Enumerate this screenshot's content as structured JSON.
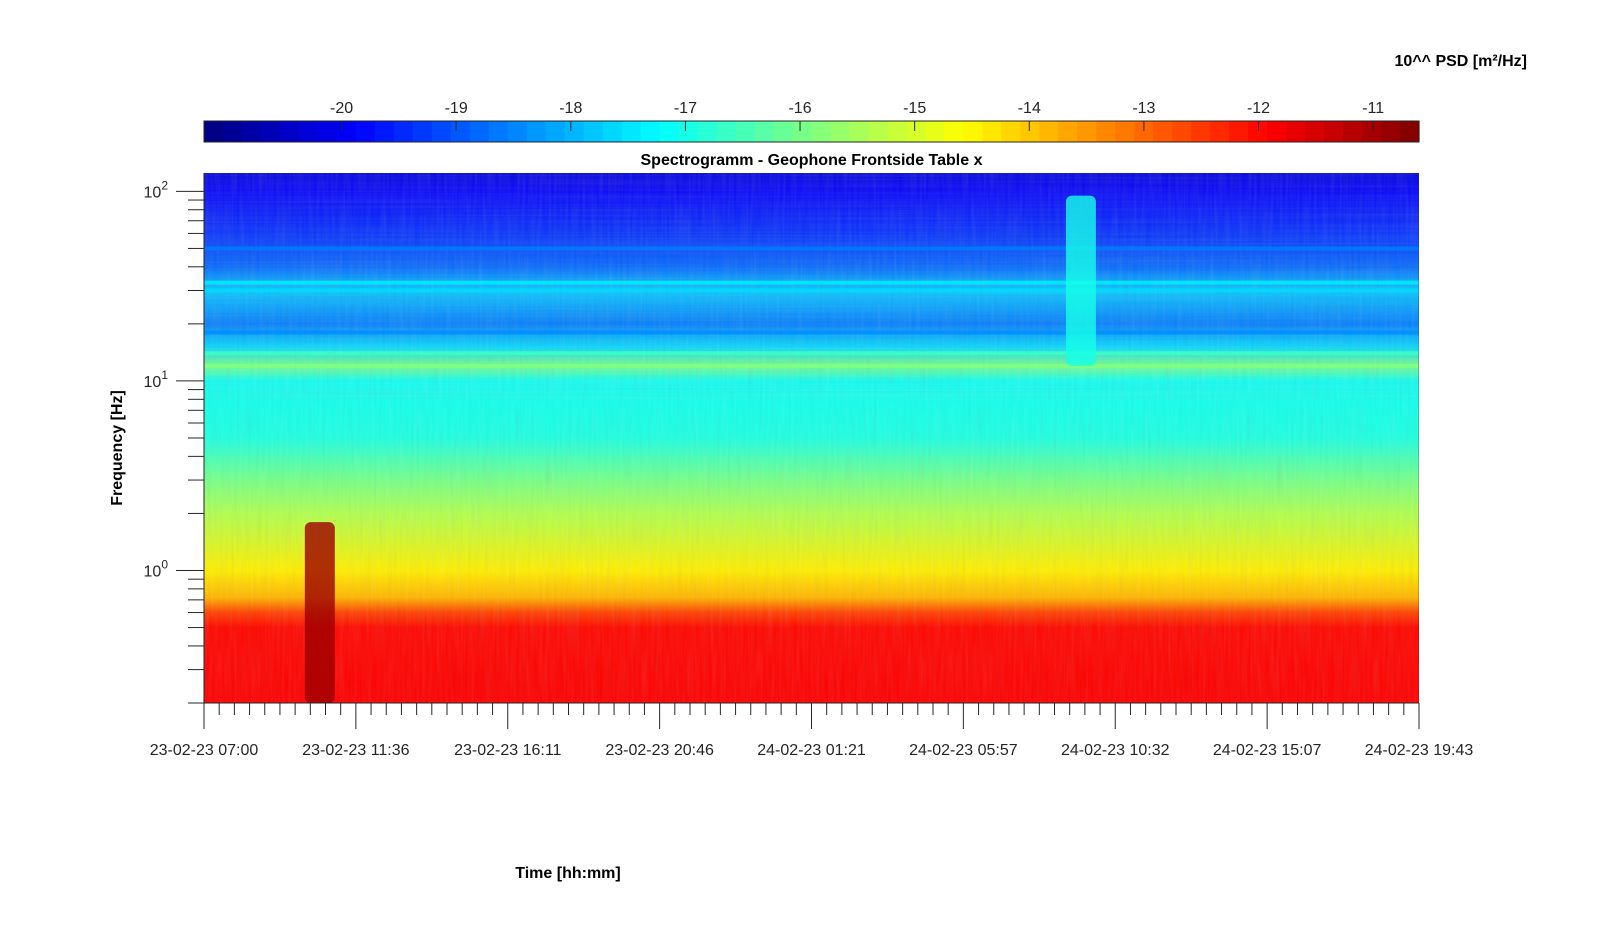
{
  "chart_data": {
    "type": "heatmap",
    "title": "Spectrogramm - Geophone Frontside Table x",
    "xlabel": "Time [hh:mm]",
    "ylabel": "Frequency [Hz]",
    "colorbar_label": "10^^ PSD [m²/Hz]",
    "colormap": "jet",
    "y_scale": "log",
    "ylim": [
      0.2,
      125
    ],
    "clim": [
      -21.2,
      -10.6
    ],
    "x_start": "23-02-23 07:00",
    "x_end": "24-02-23 19:43",
    "x_tick_labels": [
      "23-02-23 07:00",
      "23-02-23 11:36",
      "23-02-23 16:11",
      "23-02-23 20:46",
      "24-02-23 01:21",
      "24-02-23 05:57",
      "24-02-23 10:32",
      "24-02-23 15:07",
      "24-02-23 19:43"
    ],
    "y_tick_labels": [
      {
        "base": "10",
        "exp": "0",
        "value": 1
      },
      {
        "base": "10",
        "exp": "1",
        "value": 10
      },
      {
        "base": "10",
        "exp": "2",
        "value": 100
      }
    ],
    "colorbar_ticks": [
      "-20",
      "-19",
      "-18",
      "-17",
      "-16",
      "-15",
      "-14",
      "-13",
      "-12",
      "-11"
    ],
    "colorbar_tick_values": [
      -20,
      -19,
      -18,
      -17,
      -16,
      -15,
      -14,
      -13,
      -12,
      -11
    ],
    "frequency_profile": [
      {
        "freq": 0.2,
        "log_psd": -11.9
      },
      {
        "freq": 0.5,
        "log_psd": -12.0
      },
      {
        "freq": 0.6,
        "log_psd": -12.6
      },
      {
        "freq": 0.72,
        "log_psd": -13.8
      },
      {
        "freq": 1.0,
        "log_psd": -14.4
      },
      {
        "freq": 2.0,
        "log_psd": -15.4
      },
      {
        "freq": 3.0,
        "log_psd": -16.0
      },
      {
        "freq": 5.0,
        "log_psd": -16.9
      },
      {
        "freq": 10.0,
        "log_psd": -17.1
      },
      {
        "freq": 12.0,
        "log_psd": -16.0
      },
      {
        "freq": 15.0,
        "log_psd": -17.6
      },
      {
        "freq": 20.0,
        "log_psd": -18.6
      },
      {
        "freq": 30.0,
        "log_psd": -17.8
      },
      {
        "freq": 40.0,
        "log_psd": -18.8
      },
      {
        "freq": 60.0,
        "log_psd": -19.4
      },
      {
        "freq": 100.0,
        "log_psd": -19.9
      },
      {
        "freq": 125.0,
        "log_psd": -20.2
      }
    ],
    "narrowband_lines": [
      {
        "freq": 12.0,
        "log_psd": -15.9
      },
      {
        "freq": 14.0,
        "log_psd": -16.6
      },
      {
        "freq": 18.0,
        "log_psd": -18.4
      },
      {
        "freq": 30.0,
        "log_psd": -17.6
      },
      {
        "freq": 33.0,
        "log_psd": -17.4
      },
      {
        "freq": 50.0,
        "log_psd": -18.6
      }
    ],
    "events": [
      {
        "time": "23-02-23 10:30",
        "freq_range": [
          0.2,
          1.8
        ],
        "log_psd": -10.9
      },
      {
        "time": "24-02-23 09:30",
        "freq_range": [
          12,
          95
        ],
        "log_psd": -17.0
      }
    ]
  }
}
